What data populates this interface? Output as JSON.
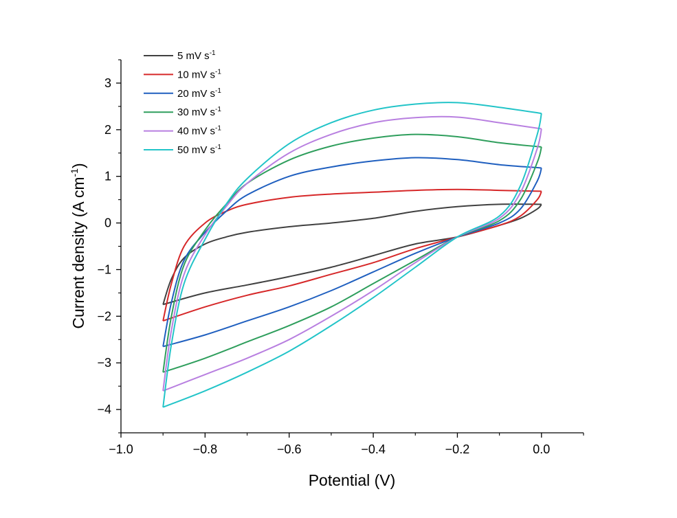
{
  "chart_data": {
    "type": "line",
    "xlabel": "Potential (V)",
    "ylabel": "Current density (A cm",
    "ylabel_sup": "-1",
    "ylabel_tail": ")",
    "xlim": [
      -1.0,
      0.1
    ],
    "ylim": [
      -4.5,
      3.5
    ],
    "x_ticks": [
      -1.0,
      -0.8,
      -0.6,
      -0.4,
      -0.2,
      0.0
    ],
    "x_tick_labels": [
      "−1.0",
      "−0.8",
      "−0.6",
      "−0.4",
      "−0.2",
      "0.0"
    ],
    "y_ticks": [
      -4,
      -3,
      -2,
      -1,
      0,
      1,
      2,
      3
    ],
    "y_tick_labels": [
      "−4",
      "−3",
      "−2",
      "−1",
      "0",
      "1",
      "2",
      "3"
    ],
    "legend": {
      "placement": "top-left"
    },
    "series": [
      {
        "name": "5 mV s",
        "unit_sup": "-1",
        "color": "#404040",
        "upper": [
          [
            -0.9,
            -1.75
          ],
          [
            -0.88,
            -1.2
          ],
          [
            -0.85,
            -0.75
          ],
          [
            -0.8,
            -0.45
          ],
          [
            -0.75,
            -0.3
          ],
          [
            -0.7,
            -0.2
          ],
          [
            -0.6,
            -0.08
          ],
          [
            -0.5,
            0.0
          ],
          [
            -0.4,
            0.1
          ],
          [
            -0.3,
            0.25
          ],
          [
            -0.2,
            0.35
          ],
          [
            -0.1,
            0.4
          ],
          [
            0.0,
            0.4
          ]
        ],
        "lower": [
          [
            0.0,
            0.4
          ],
          [
            -0.01,
            0.3
          ],
          [
            -0.05,
            0.1
          ],
          [
            -0.1,
            -0.05
          ],
          [
            -0.2,
            -0.3
          ],
          [
            -0.3,
            -0.45
          ],
          [
            -0.4,
            -0.7
          ],
          [
            -0.5,
            -0.95
          ],
          [
            -0.6,
            -1.15
          ],
          [
            -0.7,
            -1.33
          ],
          [
            -0.8,
            -1.5
          ],
          [
            -0.9,
            -1.75
          ]
        ]
      },
      {
        "name": "10 mV s",
        "unit_sup": "-1",
        "color": "#d62728",
        "upper": [
          [
            -0.9,
            -2.1
          ],
          [
            -0.88,
            -1.3
          ],
          [
            -0.85,
            -0.5
          ],
          [
            -0.8,
            0.0
          ],
          [
            -0.75,
            0.25
          ],
          [
            -0.7,
            0.4
          ],
          [
            -0.6,
            0.55
          ],
          [
            -0.5,
            0.62
          ],
          [
            -0.4,
            0.66
          ],
          [
            -0.3,
            0.7
          ],
          [
            -0.2,
            0.72
          ],
          [
            -0.1,
            0.7
          ],
          [
            0.0,
            0.68
          ]
        ],
        "lower": [
          [
            0.0,
            0.68
          ],
          [
            -0.01,
            0.5
          ],
          [
            -0.05,
            0.15
          ],
          [
            -0.1,
            -0.05
          ],
          [
            -0.2,
            -0.3
          ],
          [
            -0.3,
            -0.55
          ],
          [
            -0.4,
            -0.85
          ],
          [
            -0.5,
            -1.1
          ],
          [
            -0.6,
            -1.35
          ],
          [
            -0.7,
            -1.55
          ],
          [
            -0.8,
            -1.8
          ],
          [
            -0.9,
            -2.1
          ]
        ]
      },
      {
        "name": "20 mV s",
        "unit_sup": "-1",
        "color": "#1f5fbf",
        "upper": [
          [
            -0.9,
            -2.65
          ],
          [
            -0.88,
            -1.7
          ],
          [
            -0.85,
            -0.8
          ],
          [
            -0.8,
            -0.2
          ],
          [
            -0.75,
            0.25
          ],
          [
            -0.7,
            0.6
          ],
          [
            -0.6,
            1.0
          ],
          [
            -0.5,
            1.2
          ],
          [
            -0.4,
            1.33
          ],
          [
            -0.3,
            1.4
          ],
          [
            -0.2,
            1.36
          ],
          [
            -0.1,
            1.25
          ],
          [
            0.0,
            1.18
          ]
        ],
        "lower": [
          [
            0.0,
            1.18
          ],
          [
            -0.01,
            0.9
          ],
          [
            -0.05,
            0.3
          ],
          [
            -0.1,
            0.0
          ],
          [
            -0.2,
            -0.3
          ],
          [
            -0.3,
            -0.65
          ],
          [
            -0.4,
            -1.05
          ],
          [
            -0.5,
            -1.45
          ],
          [
            -0.6,
            -1.8
          ],
          [
            -0.7,
            -2.1
          ],
          [
            -0.8,
            -2.4
          ],
          [
            -0.9,
            -2.65
          ]
        ]
      },
      {
        "name": "30 mV s",
        "unit_sup": "-1",
        "color": "#2e9e5c",
        "upper": [
          [
            -0.9,
            -3.2
          ],
          [
            -0.88,
            -2.0
          ],
          [
            -0.85,
            -0.9
          ],
          [
            -0.8,
            -0.15
          ],
          [
            -0.75,
            0.4
          ],
          [
            -0.7,
            0.85
          ],
          [
            -0.6,
            1.35
          ],
          [
            -0.5,
            1.65
          ],
          [
            -0.4,
            1.82
          ],
          [
            -0.3,
            1.9
          ],
          [
            -0.2,
            1.85
          ],
          [
            -0.1,
            1.72
          ],
          [
            0.0,
            1.63
          ]
        ],
        "lower": [
          [
            0.0,
            1.63
          ],
          [
            -0.01,
            1.3
          ],
          [
            -0.05,
            0.5
          ],
          [
            -0.1,
            0.05
          ],
          [
            -0.2,
            -0.3
          ],
          [
            -0.3,
            -0.8
          ],
          [
            -0.4,
            -1.3
          ],
          [
            -0.5,
            -1.8
          ],
          [
            -0.6,
            -2.2
          ],
          [
            -0.7,
            -2.55
          ],
          [
            -0.8,
            -2.9
          ],
          [
            -0.9,
            -3.2
          ]
        ]
      },
      {
        "name": "40 mV s",
        "unit_sup": "-1",
        "color": "#b87fe0",
        "upper": [
          [
            -0.9,
            -3.6
          ],
          [
            -0.88,
            -2.3
          ],
          [
            -0.85,
            -1.1
          ],
          [
            -0.8,
            -0.25
          ],
          [
            -0.75,
            0.35
          ],
          [
            -0.7,
            0.85
          ],
          [
            -0.6,
            1.5
          ],
          [
            -0.5,
            1.9
          ],
          [
            -0.4,
            2.15
          ],
          [
            -0.3,
            2.26
          ],
          [
            -0.2,
            2.27
          ],
          [
            -0.1,
            2.15
          ],
          [
            0.0,
            2.02
          ]
        ],
        "lower": [
          [
            0.0,
            2.02
          ],
          [
            -0.01,
            1.6
          ],
          [
            -0.05,
            0.65
          ],
          [
            -0.1,
            0.1
          ],
          [
            -0.2,
            -0.3
          ],
          [
            -0.3,
            -0.85
          ],
          [
            -0.4,
            -1.45
          ],
          [
            -0.5,
            -2.0
          ],
          [
            -0.6,
            -2.5
          ],
          [
            -0.7,
            -2.9
          ],
          [
            -0.8,
            -3.25
          ],
          [
            -0.9,
            -3.6
          ]
        ]
      },
      {
        "name": "50 mV s",
        "unit_sup": "-1",
        "color": "#22c4c8",
        "upper": [
          [
            -0.9,
            -3.95
          ],
          [
            -0.88,
            -2.6
          ],
          [
            -0.85,
            -1.3
          ],
          [
            -0.8,
            -0.35
          ],
          [
            -0.75,
            0.4
          ],
          [
            -0.7,
            0.95
          ],
          [
            -0.6,
            1.7
          ],
          [
            -0.5,
            2.15
          ],
          [
            -0.4,
            2.42
          ],
          [
            -0.3,
            2.55
          ],
          [
            -0.2,
            2.58
          ],
          [
            -0.1,
            2.48
          ],
          [
            0.0,
            2.35
          ]
        ],
        "lower": [
          [
            0.0,
            2.35
          ],
          [
            -0.01,
            1.9
          ],
          [
            -0.05,
            0.8
          ],
          [
            -0.1,
            0.15
          ],
          [
            -0.2,
            -0.3
          ],
          [
            -0.3,
            -0.95
          ],
          [
            -0.4,
            -1.6
          ],
          [
            -0.5,
            -2.2
          ],
          [
            -0.6,
            -2.75
          ],
          [
            -0.7,
            -3.2
          ],
          [
            -0.8,
            -3.6
          ],
          [
            -0.9,
            -3.95
          ]
        ]
      }
    ]
  }
}
